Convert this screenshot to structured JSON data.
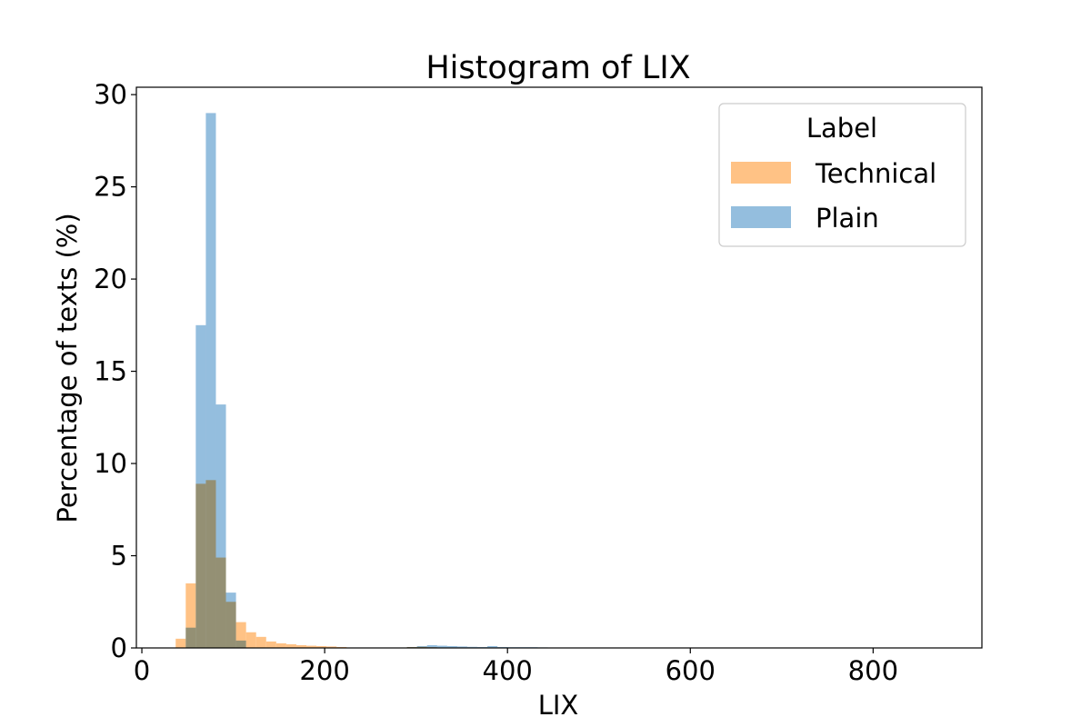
{
  "chart_data": {
    "type": "bar",
    "title": "Histogram of LIX",
    "xlabel": "LIX",
    "ylabel": "Percentage of texts (%)",
    "xlim": [
      -6,
      919
    ],
    "ylim": [
      0,
      30.4
    ],
    "xticks": [
      0,
      200,
      400,
      600,
      800
    ],
    "yticks": [
      0,
      5,
      10,
      15,
      20,
      25,
      30
    ],
    "bin_width": 11,
    "grid": false,
    "legend": {
      "title": "Label",
      "position": "top-right",
      "entries": [
        "Technical",
        "Plain"
      ]
    },
    "series": [
      {
        "name": "Technical",
        "color": "#ffbb78",
        "bins": [
          {
            "x0": 37,
            "value": 0.5
          },
          {
            "x0": 48,
            "value": 3.5
          },
          {
            "x0": 59,
            "value": 8.9
          },
          {
            "x0": 70,
            "value": 9.1
          },
          {
            "x0": 81,
            "value": 4.9
          },
          {
            "x0": 92,
            "value": 2.5
          },
          {
            "x0": 103,
            "value": 1.4
          },
          {
            "x0": 114,
            "value": 0.85
          },
          {
            "x0": 125,
            "value": 0.6
          },
          {
            "x0": 136,
            "value": 0.35
          },
          {
            "x0": 147,
            "value": 0.25
          },
          {
            "x0": 158,
            "value": 0.2
          },
          {
            "x0": 169,
            "value": 0.15
          },
          {
            "x0": 180,
            "value": 0.12
          },
          {
            "x0": 191,
            "value": 0.1
          },
          {
            "x0": 202,
            "value": 0.08
          },
          {
            "x0": 213,
            "value": 0.05
          },
          {
            "x0": 290,
            "value": 0.05
          },
          {
            "x0": 301,
            "value": 0.06
          },
          {
            "x0": 312,
            "value": 0.04
          }
        ]
      },
      {
        "name": "Plain",
        "color": "#88b7da",
        "bins": [
          {
            "x0": 48,
            "value": 1.1
          },
          {
            "x0": 59,
            "value": 17.5
          },
          {
            "x0": 70,
            "value": 29.0
          },
          {
            "x0": 81,
            "value": 13.2
          },
          {
            "x0": 92,
            "value": 3.0
          },
          {
            "x0": 103,
            "value": 0.4
          },
          {
            "x0": 290,
            "value": 0.05
          },
          {
            "x0": 301,
            "value": 0.1
          },
          {
            "x0": 312,
            "value": 0.15
          },
          {
            "x0": 323,
            "value": 0.12
          },
          {
            "x0": 334,
            "value": 0.1
          },
          {
            "x0": 345,
            "value": 0.08
          },
          {
            "x0": 356,
            "value": 0.06
          },
          {
            "x0": 367,
            "value": 0.05
          },
          {
            "x0": 378,
            "value": 0.1
          },
          {
            "x0": 389,
            "value": 0.05
          },
          {
            "x0": 400,
            "value": 0.04
          },
          {
            "x0": 411,
            "value": 0.04
          },
          {
            "x0": 422,
            "value": 0.04
          },
          {
            "x0": 433,
            "value": 0.03
          }
        ]
      }
    ]
  }
}
